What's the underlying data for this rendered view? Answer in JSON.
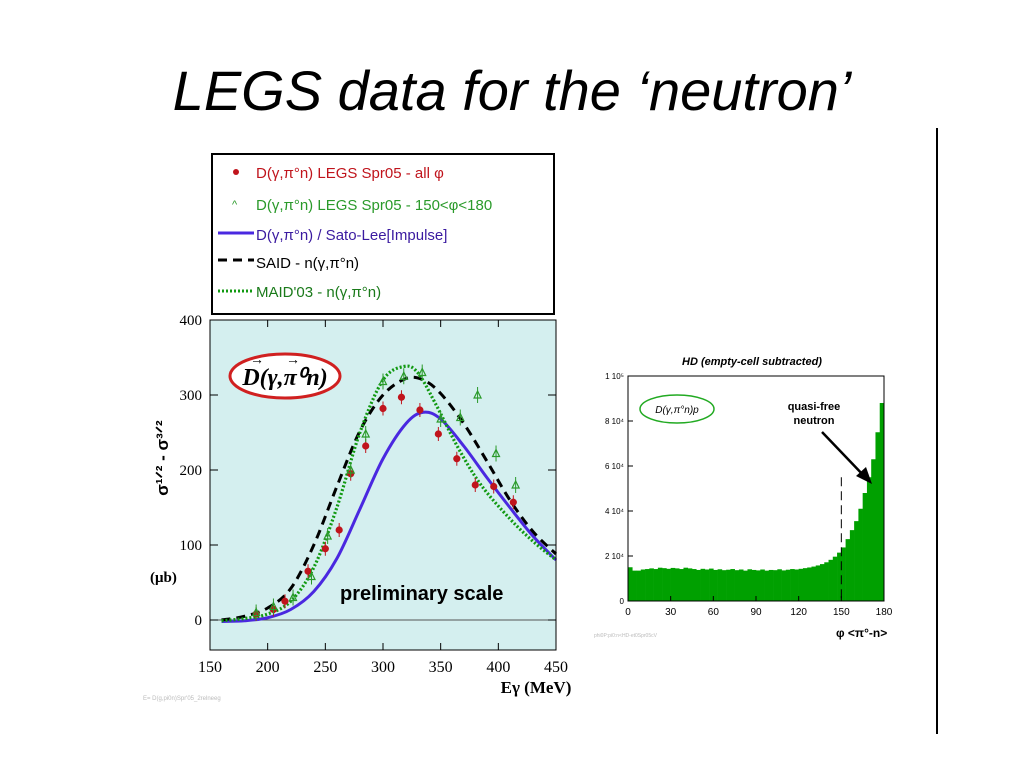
{
  "slide": {
    "title": "LEGS data for the ‘neutron’"
  },
  "colors": {
    "plot_bg": "#d4efef",
    "hist_fill": "#00a000",
    "data_red": "#c0141c",
    "data_green": "#2a9a2a",
    "sato_lee": "#4a28e0",
    "said": "#000000",
    "maid": "#119911"
  },
  "chart_data": [
    {
      "type": "line",
      "x_axis": {
        "label": "Eγ (MeV)",
        "range": [
          150,
          450
        ],
        "ticks": [
          "150",
          "200",
          "250",
          "300",
          "350",
          "400",
          "450"
        ]
      },
      "y_axis": {
        "label": "σ¹ᐟ² - σ³ᐟ²",
        "unit": "(μb)",
        "range": [
          -40,
          400
        ],
        "ticks": [
          "0",
          "100",
          "200",
          "300",
          "400"
        ]
      },
      "legend": [
        {
          "text": "D(γ,π°n) LEGS Spr05 - all φ",
          "color": "#c0141c",
          "marker": "•"
        },
        {
          "text": "D(γ,π°n) LEGS Spr05 - 150<φ<180",
          "color": "#2a9a2a",
          "marker": "^"
        },
        {
          "text": "D(γ,π°n) / Sato-Lee[Impulse]",
          "color": "#3a1aa0"
        },
        {
          "text": "SAID - n(γ,π°n)",
          "color": "#000000"
        },
        {
          "text": "MAID'03 - n(γ,π°n)",
          "color": "#1a7a1a"
        }
      ],
      "reaction_label": "D(γ,π⁰n)",
      "annotation": "preliminary scale",
      "footnote": "E= D(g,pi0n)Spr'05_2relneeg",
      "series": [
        {
          "name": "D(γ,π°n) LEGS Spr05 - all φ",
          "kind": "points",
          "x": [
            190,
            205,
            215,
            235,
            250,
            262,
            272,
            285,
            300,
            316,
            332,
            348,
            364,
            380,
            396,
            413
          ],
          "y": [
            8,
            14,
            25,
            65,
            95,
            120,
            195,
            232,
            282,
            297,
            280,
            248,
            215,
            180,
            178,
            157
          ]
        },
        {
          "name": "D(γ,π°n) LEGS Spr05 - 150<φ<180",
          "kind": "points",
          "x": [
            190,
            205,
            222,
            238,
            252,
            272,
            285,
            300,
            318,
            334,
            350,
            367,
            382,
            398,
            415
          ],
          "y": [
            10,
            18,
            30,
            58,
            112,
            200,
            248,
            318,
            325,
            330,
            268,
            270,
            300,
            222,
            180
          ]
        },
        {
          "name": "D(γ,π°n) / Sato-Lee[Impulse]",
          "kind": "solid",
          "x": [
            160,
            180,
            200,
            220,
            240,
            260,
            280,
            300,
            320,
            335,
            350,
            370,
            390,
            410,
            430,
            450
          ],
          "y": [
            -2,
            -1,
            3,
            14,
            38,
            82,
            148,
            215,
            262,
            277,
            268,
            232,
            190,
            150,
            112,
            80
          ]
        },
        {
          "name": "SAID - n(γ,π°n)",
          "kind": "dashed",
          "x": [
            160,
            180,
            200,
            220,
            240,
            260,
            280,
            300,
            320,
            335,
            350,
            370,
            390,
            410,
            430,
            450
          ],
          "y": [
            0,
            5,
            16,
            42,
            100,
            178,
            252,
            300,
            322,
            320,
            302,
            262,
            212,
            160,
            118,
            88
          ]
        },
        {
          "name": "MAID'03 - n(γ,π°n)",
          "kind": "dotted",
          "x": [
            160,
            180,
            200,
            220,
            240,
            260,
            280,
            300,
            318,
            330,
            345,
            365,
            385,
            410,
            430,
            450
          ],
          "y": [
            -1,
            2,
            8,
            25,
            70,
            150,
            250,
            320,
            338,
            330,
            290,
            230,
            180,
            135,
            105,
            80
          ]
        }
      ]
    },
    {
      "type": "bar",
      "title": "HD (empty-cell subtracted)",
      "x_axis": {
        "label": "φ <π°-n>",
        "range": [
          0,
          180
        ],
        "ticks": [
          "0",
          "30",
          "60",
          "90",
          "120",
          "150",
          "180"
        ]
      },
      "y_axis": {
        "range": [
          0,
          100000
        ],
        "ticks": [
          "0",
          "2 10⁴",
          "4 10⁴",
          "6 10⁴",
          "8 10⁴",
          "1 10⁵"
        ]
      },
      "reaction_label": "D(γ,π°n)p",
      "annotation": "quasi-free neutron",
      "annotation_lines": [
        "quasi-free",
        "neutron"
      ],
      "cut_line_x": 150,
      "footnote": "phi0P:pi0:n<HD-et0Spr05cV",
      "bin_width": 3,
      "values": [
        15000,
        13500,
        13500,
        14000,
        14200,
        14500,
        14200,
        14800,
        14600,
        14300,
        14700,
        14500,
        14200,
        14800,
        14500,
        14200,
        13800,
        14300,
        14000,
        14400,
        13800,
        14100,
        13700,
        13900,
        14200,
        13700,
        14000,
        13500,
        14100,
        13800,
        13600,
        14000,
        13500,
        13800,
        13700,
        14100,
        13600,
        13900,
        14200,
        14000,
        14300,
        14600,
        14900,
        15300,
        15800,
        16400,
        17200,
        18300,
        19700,
        21500,
        23800,
        27500,
        31500,
        35500,
        41000,
        48000,
        55000,
        63000,
        75000,
        88000
      ]
    }
  ]
}
